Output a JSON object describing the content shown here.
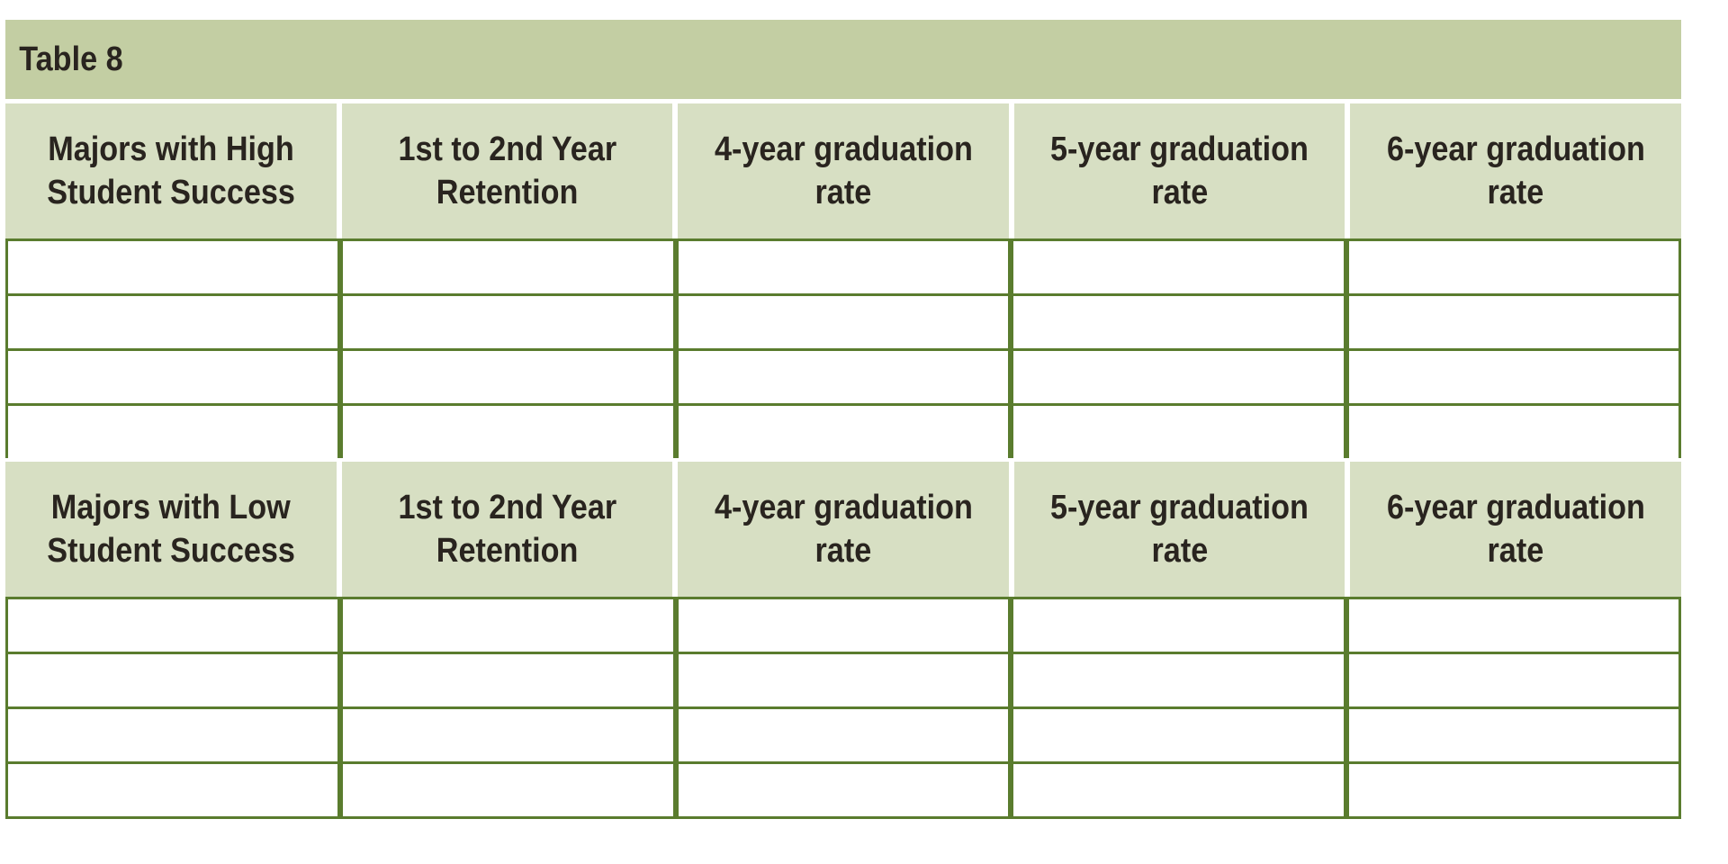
{
  "table": {
    "title": "Table 8",
    "colors": {
      "title_band_bg": "#c3cea3",
      "header_cell_bg": "#d7dfc3",
      "grid_line": "#5a7c2e",
      "text": "#29241f",
      "row_fill": "#ffffff",
      "page_bg": "#ffffff"
    },
    "sections": [
      {
        "name": "high-student-success",
        "headers": [
          {
            "line1": "Majors with High",
            "line2": "Student Success"
          },
          {
            "line1": "1st to 2nd Year",
            "line2": "Retention"
          },
          {
            "line1": "4-year graduation",
            "line2": "rate"
          },
          {
            "line1": "5-year graduation",
            "line2": "rate"
          },
          {
            "line1": "6-year graduation",
            "line2": "rate"
          }
        ],
        "rows": [
          [
            "",
            "",
            "",
            "",
            ""
          ],
          [
            "",
            "",
            "",
            "",
            ""
          ],
          [
            "",
            "",
            "",
            "",
            ""
          ],
          [
            "",
            "",
            "",
            "",
            ""
          ]
        ]
      },
      {
        "name": "low-student-success",
        "headers": [
          {
            "line1": "Majors with Low",
            "line2": "Student Success"
          },
          {
            "line1": "1st to 2nd Year",
            "line2": "Retention"
          },
          {
            "line1": "4-year graduation",
            "line2": "rate"
          },
          {
            "line1": "5-year graduation",
            "line2": "rate"
          },
          {
            "line1": "6-year graduation",
            "line2": "rate"
          }
        ],
        "rows": [
          [
            "",
            "",
            "",
            "",
            ""
          ],
          [
            "",
            "",
            "",
            "",
            ""
          ],
          [
            "",
            "",
            "",
            "",
            ""
          ],
          [
            "",
            "",
            "",
            "",
            ""
          ]
        ]
      }
    ]
  }
}
